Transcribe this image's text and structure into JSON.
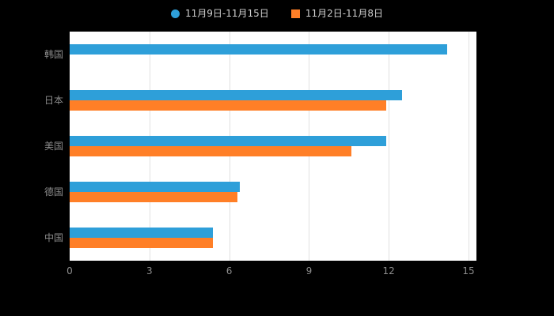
{
  "chart_data": {
    "type": "bar",
    "orientation": "horizontal",
    "title": "",
    "categories": [
      "韩国",
      "日本",
      "美国",
      "德国",
      "中国"
    ],
    "series": [
      {
        "name": "11月9日-11月15日",
        "color": "#2E9FD9",
        "marker": "circle",
        "values": [
          14.2,
          12.5,
          11.9,
          6.4,
          5.4
        ]
      },
      {
        "name": "11月2日-11月8日",
        "color": "#FF7F27",
        "marker": "square",
        "values": [
          0,
          11.9,
          10.6,
          6.3,
          5.4
        ]
      }
    ],
    "xlabel": "",
    "ylabel": "",
    "xlim": [
      0,
      15
    ],
    "x_ticks": [
      0,
      3,
      6,
      9,
      12,
      15
    ],
    "grid": true,
    "legend_position": "top",
    "background": "#000000",
    "plot_background": "#ffffff"
  }
}
